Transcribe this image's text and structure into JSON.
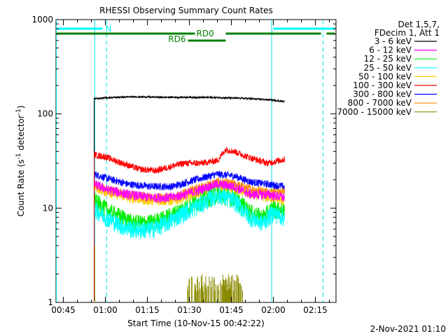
{
  "chart_data": {
    "type": "line",
    "title": "RHESSI Observing Summary Count Rates",
    "xlabel": "Start Time (10-Nov-15 00:42:22)",
    "ylabel_main": "Count Rate (s",
    "ylabel_sup1": "-1",
    "ylabel_mid": " detector",
    "ylabel_sup2": "-1",
    "ylabel_end": ")",
    "yscale": "log",
    "ylim": [
      1,
      1000
    ],
    "xlim_minutes": [
      42.37,
      142.37
    ],
    "y_ticks": [
      {
        "value": 1,
        "label": "1"
      },
      {
        "value": 10,
        "label": "10"
      },
      {
        "value": 100,
        "label": "100"
      },
      {
        "value": 1000,
        "label": "1000"
      }
    ],
    "x_ticks": [
      {
        "minute": 45,
        "label": "00:45"
      },
      {
        "minute": 60,
        "label": "01:00"
      },
      {
        "minute": 75,
        "label": "01:15"
      },
      {
        "minute": 90,
        "label": "01:30"
      },
      {
        "minute": 105,
        "label": "01:45"
      },
      {
        "minute": 120,
        "label": "02:00"
      },
      {
        "minute": 135,
        "label": "02:15"
      }
    ],
    "legend_header": [
      "Det 1,5,7,",
      "FDecim 1, Att 1"
    ],
    "legend_position": "right",
    "series": [
      {
        "name": "3 - 6 keV",
        "color": "#000000",
        "x": [
          56,
          60,
          70,
          80,
          90,
          100,
          110,
          120,
          124
        ],
        "y": [
          145,
          148,
          152,
          150,
          150,
          149,
          146,
          140,
          135
        ]
      },
      {
        "name": "6 - 12 keV",
        "color": "#ff00ff",
        "x": [
          56,
          60,
          68,
          76,
          84,
          92,
          100,
          106,
          112,
          118,
          124
        ],
        "y": [
          18,
          16,
          14,
          13,
          13,
          15,
          18,
          17,
          14,
          14,
          13
        ]
      },
      {
        "name": "12 - 25 keV",
        "color": "#00ee00",
        "x": [
          56,
          58,
          62,
          66,
          70,
          76,
          82,
          88,
          94,
          100,
          106,
          112,
          116,
          120,
          124
        ],
        "y": [
          12,
          11,
          9,
          8,
          7,
          7,
          8,
          10,
          12,
          14,
          13,
          9,
          8,
          10,
          9
        ]
      },
      {
        "name": "25 - 50 keV",
        "color": "#00ffff",
        "x": [
          56,
          58,
          62,
          66,
          70,
          76,
          82,
          88,
          94,
          100,
          106,
          112,
          116,
          120,
          124
        ],
        "y": [
          10,
          9,
          7.5,
          6.5,
          6,
          6,
          7,
          9,
          11,
          14,
          12,
          8,
          7,
          9,
          8
        ]
      },
      {
        "name": "50 - 100 keV",
        "color": "#ffcc00",
        "x": [
          56,
          60,
          68,
          76,
          84,
          92,
          100,
          106,
          112,
          118,
          124
        ],
        "y": [
          17,
          15,
          13,
          12,
          12,
          14,
          17,
          16,
          14,
          13,
          12
        ]
      },
      {
        "name": "100 - 300 keV",
        "color": "#ff0000",
        "x": [
          56,
          60,
          66,
          72,
          78,
          84,
          88,
          94,
          100,
          103,
          106,
          112,
          118,
          124
        ],
        "y": [
          37,
          35,
          30,
          26,
          25,
          28,
          30,
          30,
          32,
          42,
          40,
          34,
          30,
          33
        ]
      },
      {
        "name": "300 - 800 keV",
        "color": "#0000ff",
        "x": [
          56,
          60,
          68,
          76,
          84,
          92,
          100,
          106,
          112,
          118,
          124
        ],
        "y": [
          23,
          21,
          18,
          17,
          17,
          20,
          23,
          22,
          19,
          18,
          17
        ]
      },
      {
        "name": "800 - 7000 keV",
        "color": "#ff8c00",
        "x": [
          56,
          60,
          68,
          76,
          84,
          92,
          100,
          106,
          112,
          118,
          124
        ],
        "y": [
          17,
          16,
          14,
          13,
          13,
          16,
          19,
          18,
          16,
          15,
          15
        ]
      },
      {
        "name": "7000 - 15000 keV",
        "color": "#8b8b00",
        "x": [
          89,
          91,
          93,
          95,
          97,
          99,
          101,
          103,
          105,
          107,
          109
        ],
        "y": [
          2,
          1.5,
          2,
          1.3,
          2,
          1.8,
          2,
          1.4,
          2,
          1.6,
          2
        ]
      }
    ],
    "vertical_lines": {
      "solid_cyan_minutes": [
        42.5,
        56.2,
        119.4
      ],
      "dashed_cyan_minutes": [
        60.4,
        137.7
      ]
    },
    "flag_bars": [
      {
        "label": "N",
        "color": "#00ffff",
        "level": 1,
        "segments": [
          [
            42.5,
            59.0
          ],
          [
            120.0,
            142.0
          ]
        ]
      },
      {
        "label": "RD0",
        "color": "#008000",
        "level": 2,
        "segments": [
          [
            42.5,
            92.0
          ],
          [
            103.0,
            137.0
          ],
          [
            139.0,
            142.0
          ]
        ]
      },
      {
        "label": "RD6",
        "color": "#008000",
        "level": 3,
        "segments": [
          [
            89.5,
            103.0
          ]
        ]
      }
    ],
    "footer_date": "2-Nov-2021 01:10"
  }
}
